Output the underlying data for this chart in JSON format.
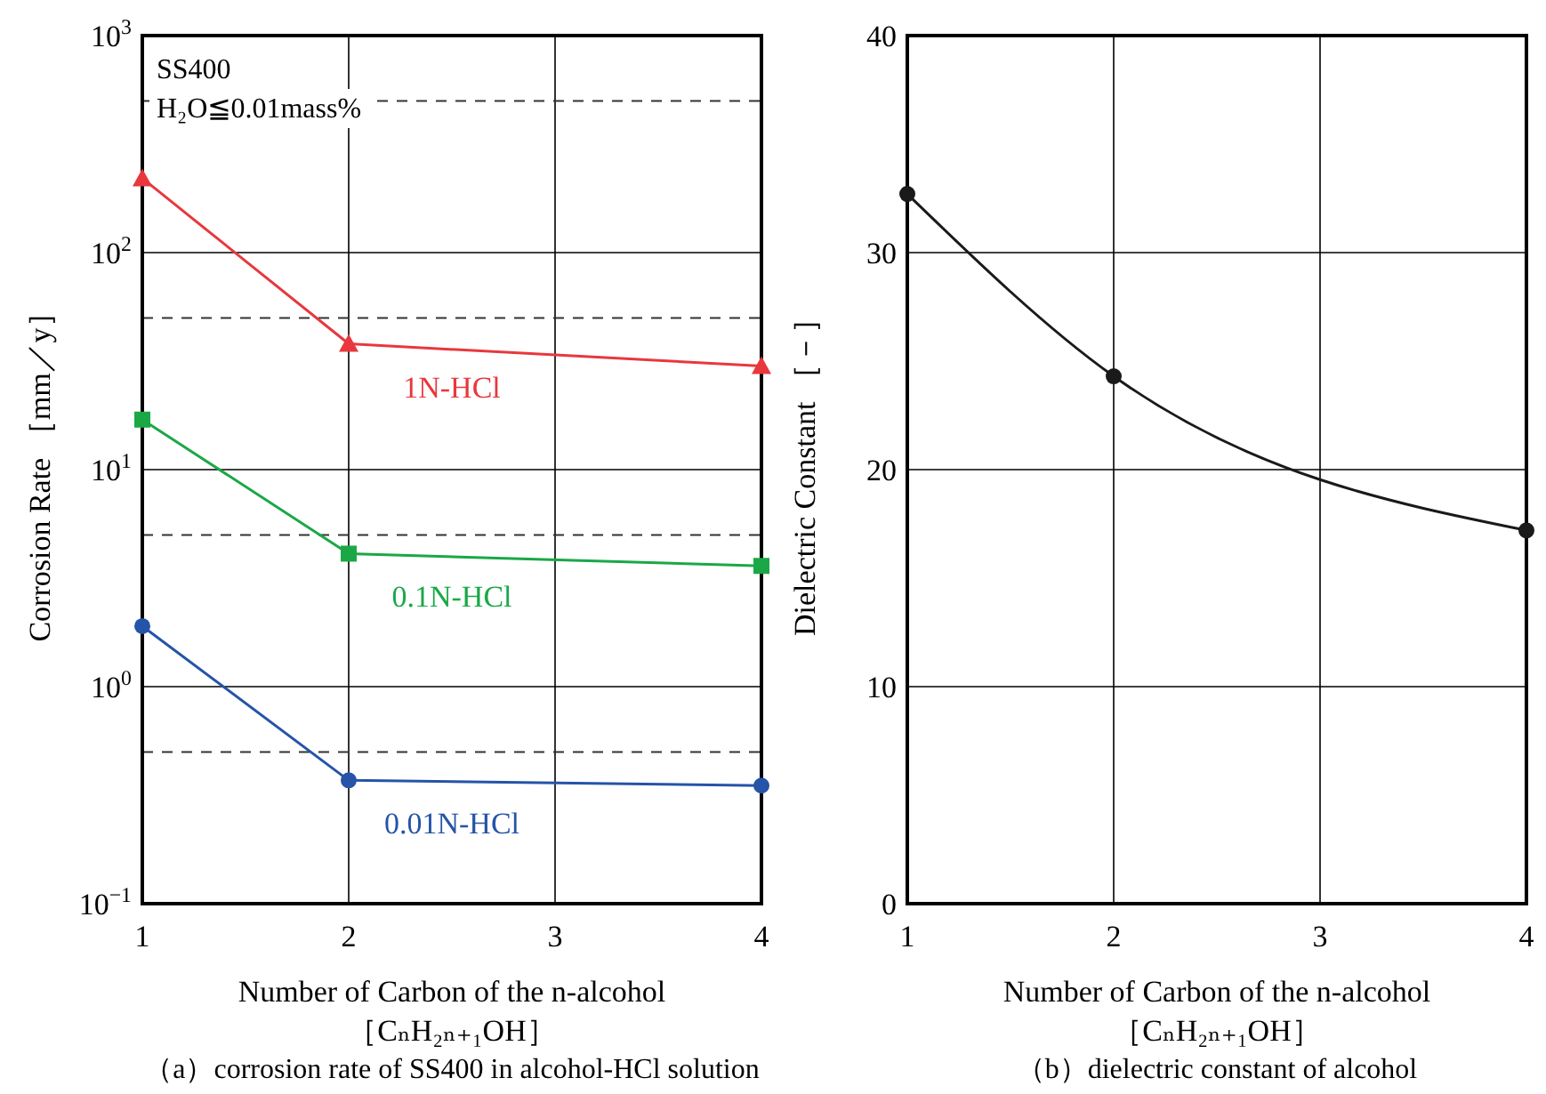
{
  "chart_data": [
    {
      "type": "line",
      "title": "（a）corrosion rate of SS400 in alcohol-HCl solution",
      "xlabel": "Number of Carbon of the n-alcohol\n［CₙH₂ₙ₊₁OH］",
      "ylabel": "Corrosion Rate ［mm／y］",
      "log": "y",
      "x": [
        1,
        2,
        4
      ],
      "xlim": [
        1,
        4
      ],
      "xticks": [
        1,
        2,
        3,
        4
      ],
      "ylim": [
        0.1,
        1000
      ],
      "yticks": [
        {
          "value": 0.1,
          "label": "10$^{−1}$"
        },
        {
          "value": 1,
          "label": "10$^{0}$"
        },
        {
          "value": 10,
          "label": "10$^{1}$"
        },
        {
          "value": 100,
          "label": "10$^{2}$"
        },
        {
          "value": 1000,
          "label": "10$^{3}$"
        }
      ],
      "grid": true,
      "ref_lines": [
        {
          "axis": "y",
          "value": 500,
          "line_style": "dashed",
          "color": "#333333"
        },
        {
          "axis": "y",
          "value": 50,
          "line_style": "dashed",
          "color": "#333333"
        },
        {
          "axis": "y",
          "value": 5,
          "line_style": "dashed",
          "color": "#333333"
        },
        {
          "axis": "y",
          "value": 0.5,
          "line_style": "dashed",
          "color": "#333333"
        }
      ],
      "annotations": [
        "SS400",
        "H₂O≦0.01mass%"
      ],
      "series": [
        {
          "name": "1N-HCl",
          "color": "#e8383d",
          "marker": "triangle",
          "values": [
            220,
            38,
            30
          ]
        },
        {
          "name": "0.1N-HCl",
          "color": "#1aa846",
          "marker": "square",
          "values": [
            17,
            4.1,
            3.6
          ]
        },
        {
          "name": "0.01N-HCl",
          "color": "#2554a8",
          "marker": "circle",
          "values": [
            1.9,
            0.37,
            0.35
          ]
        }
      ]
    },
    {
      "type": "line",
      "title": "（b）dielectric constant of alcohol",
      "xlabel": "Number of Carbon of the n-alcohol\n［CₙH₂ₙ₊₁OH］",
      "ylabel": "Dielectric Constant ［－］",
      "x": [
        1,
        2,
        4
      ],
      "xlim": [
        1,
        4
      ],
      "xticks": [
        1,
        2,
        3,
        4
      ],
      "ylim": [
        0,
        40
      ],
      "yticks": [
        0,
        10,
        20,
        30,
        40
      ],
      "grid": true,
      "series": [
        {
          "color": "#1a1a1a",
          "marker": "circle",
          "values": [
            32.7,
            24.3,
            17.2
          ]
        }
      ]
    }
  ]
}
